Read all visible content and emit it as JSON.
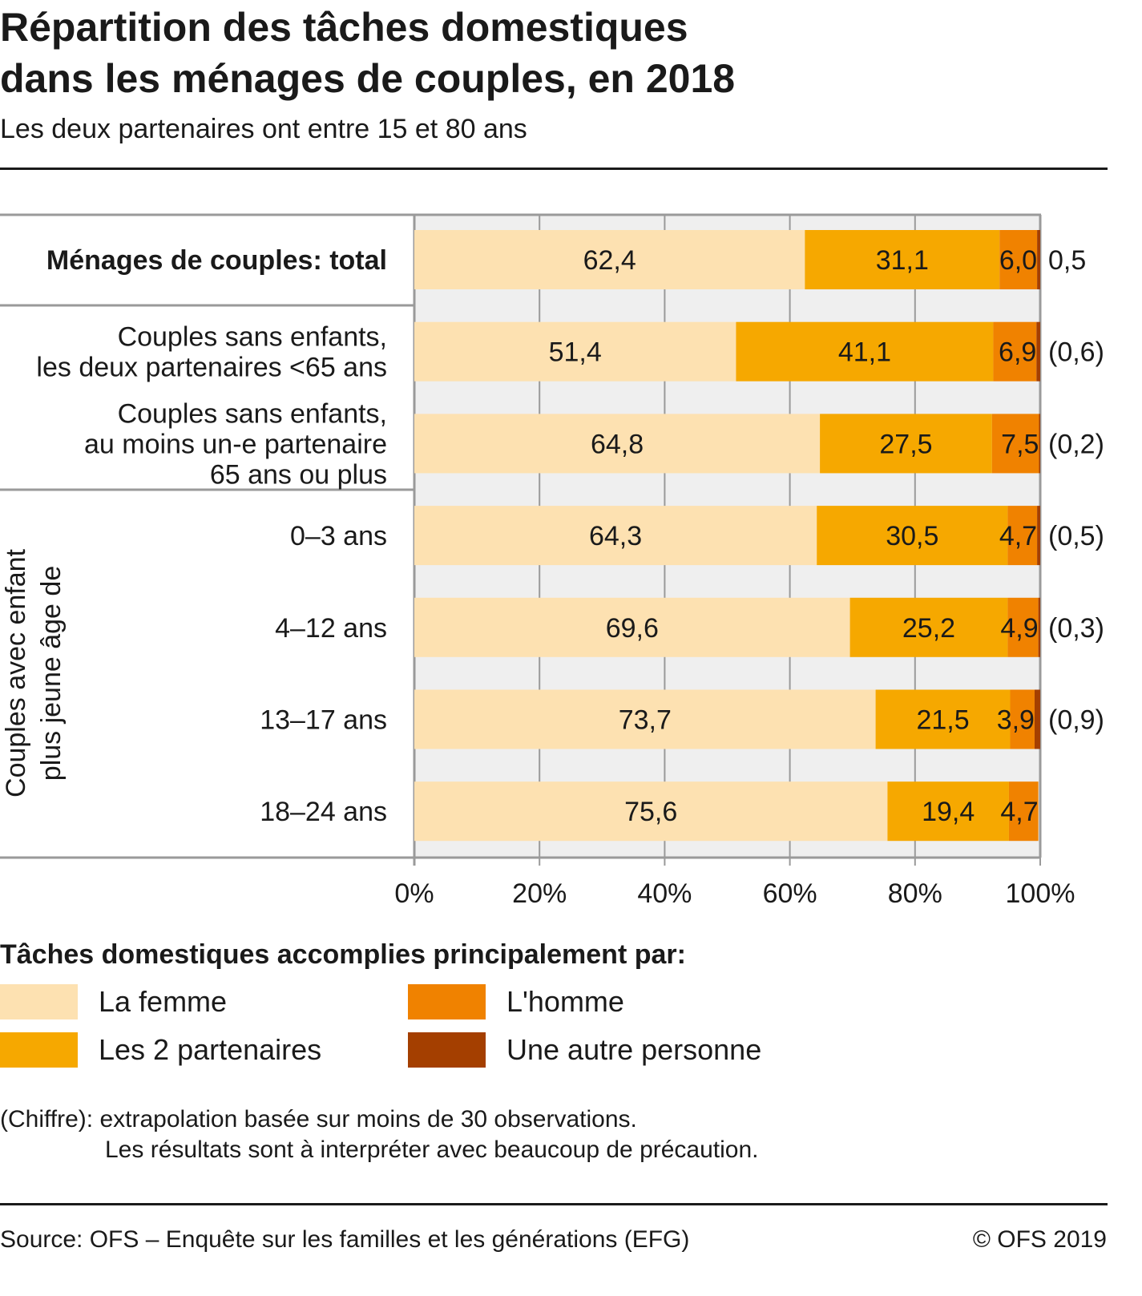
{
  "title_line1": "Répartition des tâches domestiques",
  "title_line2": "dans les ménages de couples, en 2018",
  "subtitle": "Les deux partenaires ont entre 15 et 80 ans",
  "chart_data": {
    "type": "bar",
    "orientation": "horizontal",
    "stacked": true,
    "title": "Répartition des tâches domestiques dans les ménages de couples, en 2018",
    "categories": [
      [
        "Ménages de couples: total"
      ],
      [
        "Couples sans enfants,",
        "les deux partenaires <65 ans"
      ],
      [
        "Couples sans enfants,",
        "au moins un-e partenaire",
        "65 ans ou plus"
      ],
      [
        "0–3 ans"
      ],
      [
        "4–12 ans"
      ],
      [
        "13–17 ans"
      ],
      [
        "18–24 ans"
      ]
    ],
    "group_label": [
      "Couples avec enfant",
      "plus jeune âge de"
    ],
    "series": [
      {
        "name": "La femme",
        "color": "#fde1b1",
        "values": [
          62.4,
          51.4,
          64.8,
          64.3,
          69.6,
          73.7,
          75.6
        ]
      },
      {
        "name": "Les 2 partenaires",
        "color": "#f6a800",
        "values": [
          31.1,
          41.1,
          27.5,
          30.5,
          25.2,
          21.5,
          19.4
        ]
      },
      {
        "name": "L'homme",
        "color": "#f08200",
        "values": [
          6.0,
          6.9,
          7.5,
          4.7,
          4.9,
          3.9,
          4.7
        ]
      },
      {
        "name": "Une autre personne",
        "color": "#a43f00",
        "values": [
          0.5,
          0.6,
          0.2,
          0.5,
          0.3,
          0.9,
          null
        ]
      }
    ],
    "data_labels": [
      [
        "62,4",
        "31,1",
        "6,0",
        "0,5"
      ],
      [
        "51,4",
        "41,1",
        "6,9",
        "(0,6)"
      ],
      [
        "64,8",
        "27,5",
        "7,5",
        "(0,2)"
      ],
      [
        "64,3",
        "30,5",
        "4,7",
        "(0,5)"
      ],
      [
        "69,6",
        "25,2",
        "4,9",
        "(0,3)"
      ],
      [
        "73,7",
        "21,5",
        "3,9",
        "(0,9)"
      ],
      [
        "75,6",
        "19,4",
        "4,7",
        ""
      ]
    ],
    "xlim": [
      0,
      100
    ],
    "xticks": [
      "0%",
      "20%",
      "40%",
      "60%",
      "80%",
      "100%"
    ],
    "grid": true,
    "legend_title": "Tâches domestiques accomplies principalement par:",
    "legend_placement": "bottom"
  },
  "note_line1": "(Chiffre): extrapolation basée sur moins de 30 observations.",
  "note_line2": "Les résultats sont à interpréter avec beaucoup de précaution.",
  "source": "Source: OFS – Enquête sur les familles et les générations (EFG)",
  "copyright": "© OFS 2019"
}
